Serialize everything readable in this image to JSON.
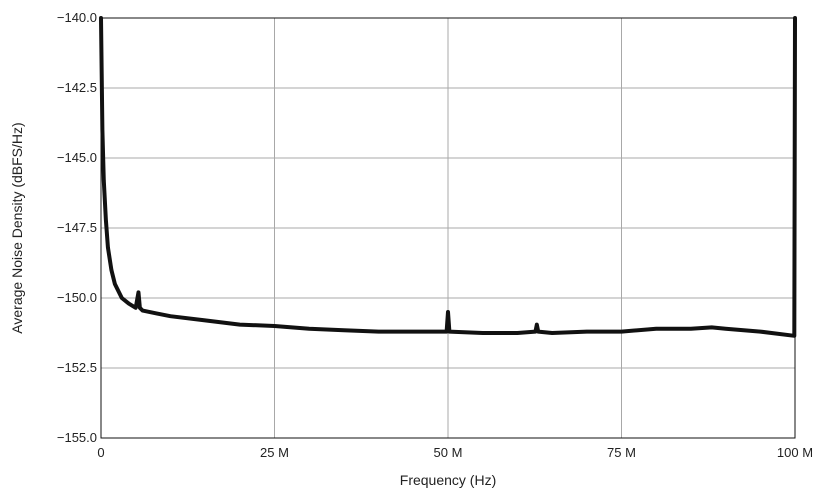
{
  "chart_data": {
    "type": "line",
    "title": "",
    "xlabel": "Frequency (Hz)",
    "ylabel": "Average Noise Density (dBFS/Hz)",
    "xlim": [
      0,
      100000000
    ],
    "ylim": [
      -155,
      -140
    ],
    "x_ticks": [
      0,
      25000000,
      50000000,
      75000000,
      100000000
    ],
    "x_tick_labels": [
      "0",
      "25 M",
      "50 M",
      "75 M",
      "100 M"
    ],
    "y_ticks": [
      -155,
      -152.5,
      -150,
      -147.5,
      -145,
      -142.5,
      -140
    ],
    "y_tick_labels": [
      "−155.0",
      "−152.5",
      "−150.0",
      "−147.5",
      "−145.0",
      "−142.5",
      "−140.0"
    ],
    "grid": true,
    "series": [
      {
        "color": "#111111",
        "x": [
          0,
          100000,
          200000,
          400000,
          700000,
          1000000,
          1500000,
          2000000,
          3000000,
          4000000,
          5000000,
          5400000,
          5600000,
          6000000,
          8000000,
          10000000,
          15000000,
          20000000,
          25000000,
          30000000,
          35000000,
          40000000,
          45000000,
          49800000,
          50000000,
          50200000,
          55000000,
          60000000,
          62600000,
          62800000,
          63000000,
          65000000,
          70000000,
          75000000,
          80000000,
          85000000,
          88000000,
          90000000,
          95000000,
          99900000,
          100000000
        ],
        "y": [
          -140,
          -142,
          -144,
          -145.8,
          -147.2,
          -148.2,
          -149.0,
          -149.5,
          -150.0,
          -150.2,
          -150.35,
          -149.8,
          -150.35,
          -150.45,
          -150.55,
          -150.65,
          -150.8,
          -150.95,
          -151.0,
          -151.1,
          -151.15,
          -151.2,
          -151.2,
          -151.2,
          -150.5,
          -151.2,
          -151.25,
          -151.25,
          -151.2,
          -150.95,
          -151.2,
          -151.25,
          -151.2,
          -151.2,
          -151.1,
          -151.1,
          -151.05,
          -151.1,
          -151.2,
          -151.35,
          -140
        ]
      }
    ]
  }
}
